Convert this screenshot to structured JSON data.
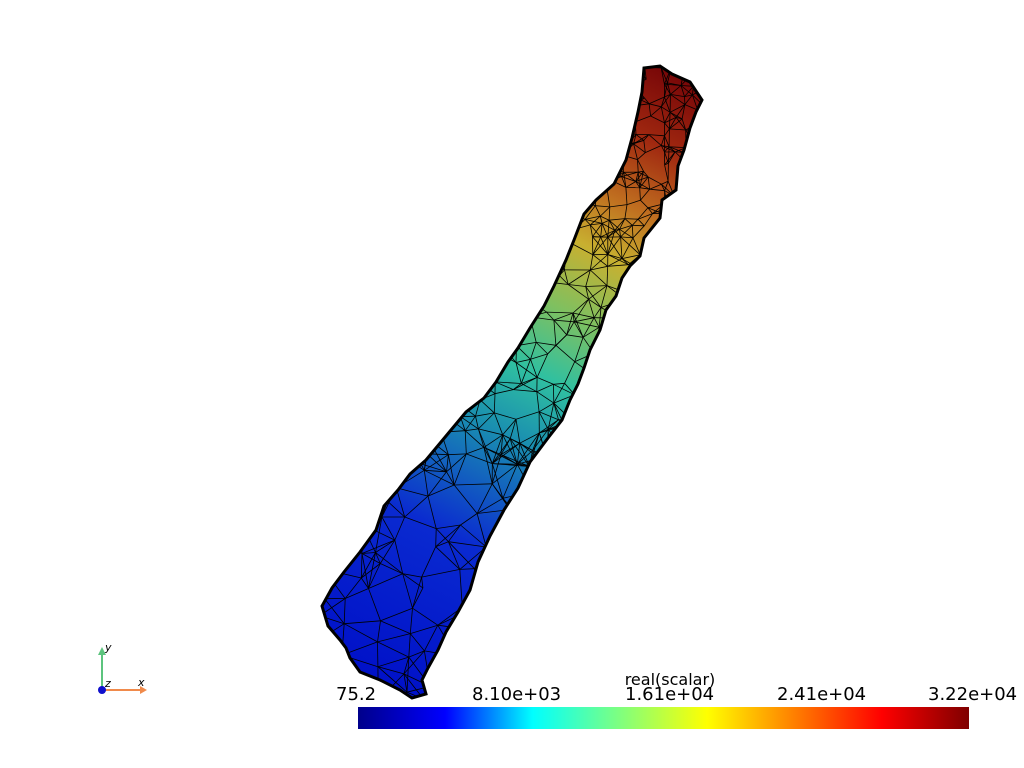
{
  "colorbar": {
    "title": "real(scalar)",
    "ticks": [
      "75.2",
      "8.10e+03",
      "1.61e+04",
      "2.41e+04",
      "3.22e+04"
    ],
    "min": 75.2,
    "max": 32200,
    "colormap": "jet",
    "colors": [
      "#00008b",
      "#0000ff",
      "#00ffff",
      "#7fff7f",
      "#ffff00",
      "#ff7f00",
      "#ff0000",
      "#7f0000"
    ]
  },
  "axes_widget": {
    "x_label": "x",
    "y_label": "y",
    "z_label": "z",
    "x_color": "#f08a4b",
    "y_color": "#5cc47e",
    "z_color": "#1010cc"
  },
  "mesh": {
    "edge_color": "#000000",
    "background": "#ffffff"
  }
}
